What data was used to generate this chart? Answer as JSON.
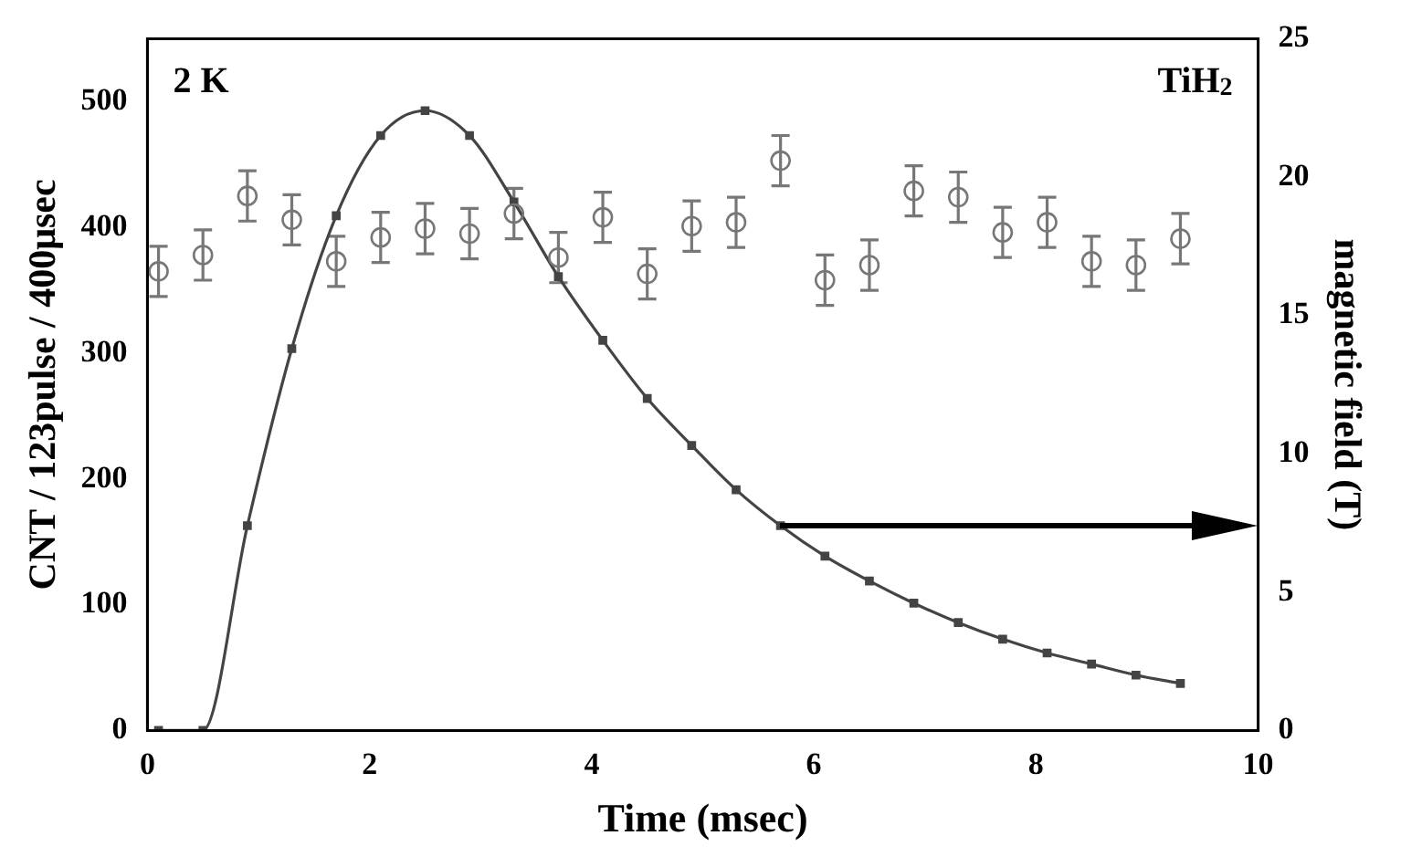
{
  "chart_data": {
    "type": "line",
    "xlabel": "Time (msec)",
    "ylabel": "CNT / 123pulse / 400μsec",
    "y2label": "magnetic field (T)",
    "annotations": [
      "2 K",
      "TiH$_{2}$"
    ],
    "xlim": [
      0,
      10
    ],
    "xticks": [
      0,
      2,
      4,
      6,
      8,
      10
    ],
    "ylim": [
      0,
      550
    ],
    "yticks": [
      0,
      100,
      200,
      300,
      400,
      500
    ],
    "y2lim": [
      0,
      25
    ],
    "y2ticks": [
      0,
      5,
      10,
      15,
      20,
      25
    ],
    "grid": false,
    "legend": false,
    "series": [
      {
        "type": "scatter",
        "marker": "circle",
        "color": "#777777",
        "x": [
          0.1,
          0.5,
          0.9,
          1.3,
          1.7,
          2.1,
          2.5,
          2.9,
          3.3,
          3.7,
          4.1,
          4.5,
          4.9,
          5.3,
          5.7,
          6.1,
          6.5,
          6.9,
          7.3,
          7.7,
          8.1,
          8.5,
          8.9,
          9.3
        ],
        "values": [
          365,
          378,
          425,
          406,
          373,
          392,
          399,
          395,
          411,
          376,
          408,
          363,
          401,
          404,
          453,
          358,
          370,
          429,
          424,
          396,
          404,
          373,
          370,
          391
        ],
        "errors": [
          20,
          20,
          20,
          20,
          20,
          20,
          20,
          20,
          20,
          20,
          20,
          20,
          20,
          20,
          20,
          20,
          20,
          20,
          20,
          20,
          20,
          20,
          20,
          20
        ]
      },
      {
        "axis": "y2",
        "marker": "square",
        "line_style": "solid",
        "color": "#444444",
        "x": [
          0.1,
          0.5,
          0.9,
          1.3,
          1.7,
          2.1,
          2.5,
          2.9,
          3.3,
          3.7,
          4.1,
          4.5,
          4.9,
          5.3,
          5.7,
          6.1,
          6.5,
          6.9,
          7.3,
          7.7,
          8.1,
          8.5,
          8.9,
          9.3
        ],
        "values": [
          0,
          0,
          7.4,
          13.8,
          18.6,
          21.5,
          22.4,
          21.5,
          19.1,
          16.4,
          14.1,
          12.0,
          10.3,
          8.7,
          7.4,
          6.3,
          5.4,
          4.6,
          3.9,
          3.3,
          2.8,
          2.4,
          2.0,
          1.7
        ]
      }
    ]
  }
}
